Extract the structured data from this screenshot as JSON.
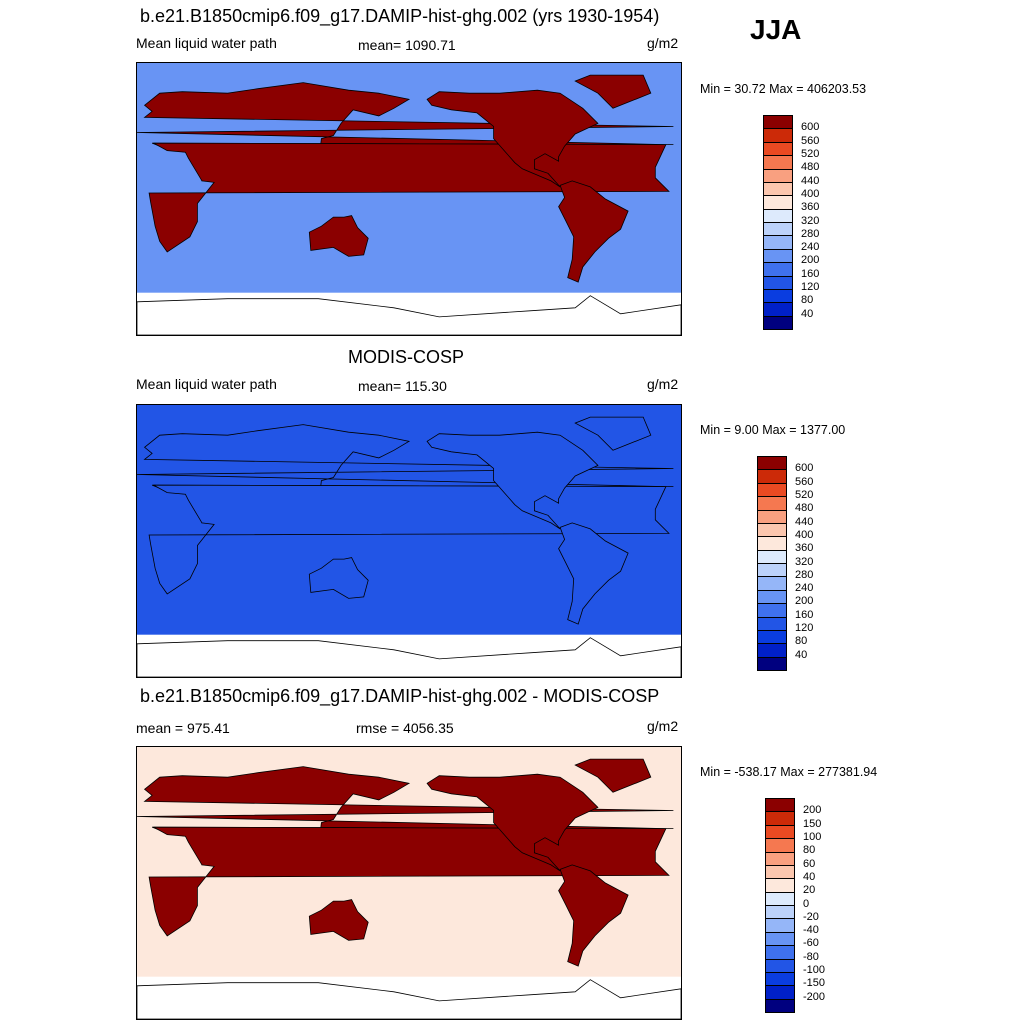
{
  "season": "JJA",
  "colors": {
    "scale": [
      "#00007f",
      "#0020c8",
      "#0a3de0",
      "#2255e6",
      "#3f71ee",
      "#6894f4",
      "#95b6f8",
      "#bcd2fa",
      "#ddeafc",
      "#fde8dc",
      "#fbc6ae",
      "#f9a080",
      "#f57850",
      "#ea4a22",
      "#cc2a08",
      "#8b0000"
    ],
    "land_outline": "#000000",
    "missing": "#ffffff"
  },
  "chart_data": [
    {
      "type": "heatmap",
      "title": "b.e21.B1850cmip6.f09_g17.DAMIP-hist-ghg.002 (yrs 1930-1954)",
      "left_label": "Mean liquid water path",
      "center_label": "mean= 1090.71",
      "units": "g/m2",
      "minmax": "Min =  30.72 Max = 406203.53",
      "levels": [
        "600",
        "560",
        "520",
        "480",
        "440",
        "400",
        "360",
        "320",
        "280",
        "240",
        "200",
        "160",
        "120",
        "80",
        "40"
      ],
      "ocean_level": 200,
      "land_level": 600
    },
    {
      "type": "heatmap",
      "title": "MODIS-COSP",
      "left_label": "Mean liquid water path",
      "center_label": "mean= 115.30",
      "units": "g/m2",
      "minmax": "Min =   9.00 Max = 1377.00",
      "levels": [
        "600",
        "560",
        "520",
        "480",
        "440",
        "400",
        "360",
        "320",
        "280",
        "240",
        "200",
        "160",
        "120",
        "80",
        "40"
      ],
      "ocean_level": 120,
      "land_level": 120
    },
    {
      "type": "heatmap",
      "title": "b.e21.B1850cmip6.f09_g17.DAMIP-hist-ghg.002 - MODIS-COSP",
      "left_label": "mean = 975.41",
      "center_label": "rmse = 4056.35",
      "units": "g/m2",
      "minmax": "Min = -538.17 Max = 277381.94",
      "levels": [
        "200",
        "150",
        "100",
        "80",
        "60",
        "40",
        "20",
        "0",
        "-20",
        "-40",
        "-60",
        "-80",
        "-100",
        "-150",
        "-200"
      ],
      "ocean_level": 20,
      "land_level": 200
    }
  ]
}
